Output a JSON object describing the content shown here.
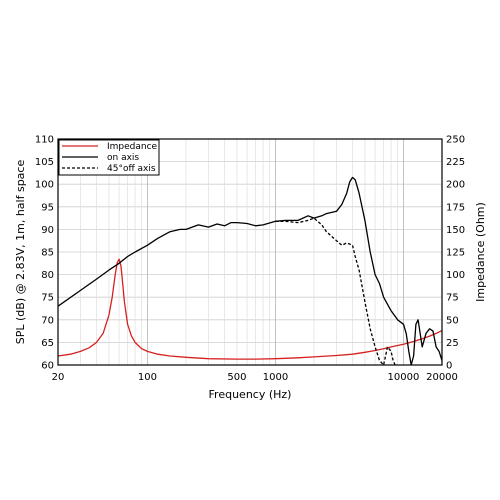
{
  "chart_data": {
    "type": "line",
    "title": "",
    "xlabel": "Frequency (Hz)",
    "ylabel_left": "SPL (dB) @ 2.83V, 1m, half space",
    "ylabel_right": "Impedance (Ohm)",
    "x_scale": "log",
    "xlim": [
      20,
      20000
    ],
    "ylim_left": [
      60,
      110
    ],
    "ylim_right": [
      0,
      250
    ],
    "x_tick_labels": [
      "20",
      "100",
      "500",
      "1000",
      "10000",
      "20000"
    ],
    "x_tick_values": [
      20,
      100,
      500,
      1000,
      10000,
      20000
    ],
    "y_left_ticks": [
      60,
      65,
      70,
      75,
      80,
      85,
      90,
      95,
      100,
      105,
      110
    ],
    "y_right_ticks": [
      0,
      25,
      50,
      75,
      100,
      125,
      150,
      175,
      200,
      225,
      250
    ],
    "grid": true,
    "legend_position": "top-left",
    "series": [
      {
        "name": "Impedance",
        "color": "#d62020",
        "style": "solid",
        "axis": "right",
        "x": [
          20,
          25,
          30,
          35,
          40,
          45,
          50,
          53,
          56,
          58,
          60,
          62,
          64,
          66,
          70,
          75,
          80,
          90,
          100,
          120,
          150,
          200,
          300,
          500,
          700,
          1000,
          1500,
          2000,
          3000,
          4000,
          5000,
          6000,
          7000,
          8000,
          10000,
          12000,
          14000,
          16000,
          18000,
          20000
        ],
        "y": [
          10,
          12,
          15,
          19,
          25,
          35,
          55,
          75,
          100,
          113,
          117,
          110,
          90,
          70,
          45,
          32,
          25,
          18,
          15,
          12,
          10,
          8.5,
          7,
          6.5,
          6.5,
          7,
          8,
          9,
          10.5,
          12,
          14,
          16,
          18,
          20,
          23,
          26,
          29,
          32,
          35,
          38
        ]
      },
      {
        "name": "on axis",
        "color": "#000000",
        "style": "solid",
        "axis": "left",
        "x": [
          20,
          30,
          40,
          50,
          60,
          70,
          80,
          100,
          120,
          150,
          180,
          200,
          250,
          300,
          350,
          400,
          450,
          500,
          600,
          700,
          800,
          1000,
          1200,
          1500,
          1800,
          2000,
          2300,
          2500,
          3000,
          3300,
          3600,
          3800,
          4000,
          4200,
          4500,
          5000,
          5500,
          6000,
          6500,
          7000,
          8000,
          9000,
          10000,
          10500,
          11000,
          11500,
          12000,
          12500,
          13000,
          14000,
          15000,
          16000,
          17000,
          18000,
          19000,
          20000
        ],
        "y": [
          73,
          76.5,
          79,
          81,
          82.5,
          84,
          85,
          86.5,
          88,
          89.5,
          90,
          90,
          91,
          90.5,
          91.2,
          90.8,
          91.5,
          91.5,
          91.3,
          90.8,
          91,
          91.8,
          92,
          92,
          93,
          92.5,
          93,
          93.5,
          94,
          95.5,
          98,
          100.5,
          101.5,
          101,
          98,
          92,
          85,
          80,
          78,
          75,
          72,
          70,
          69,
          67,
          63,
          58,
          62,
          69,
          70,
          64,
          67,
          68,
          67.5,
          64,
          63,
          61
        ]
      },
      {
        "name": "45°off axis",
        "color": "#000000",
        "style": "dashed",
        "axis": "left",
        "x": [
          1000,
          1200,
          1500,
          1800,
          2000,
          2300,
          2500,
          3000,
          3300,
          3600,
          4000,
          4200,
          4500,
          5000,
          5500,
          6000,
          6500,
          7000,
          7500,
          8000,
          8300,
          8600,
          9000
        ],
        "y": [
          91.8,
          91.8,
          91.5,
          92,
          92.5,
          91,
          89.5,
          87.5,
          86.5,
          87,
          86.5,
          84,
          81,
          74,
          68,
          64,
          61,
          60,
          64,
          63,
          61,
          60,
          60
        ]
      }
    ]
  }
}
